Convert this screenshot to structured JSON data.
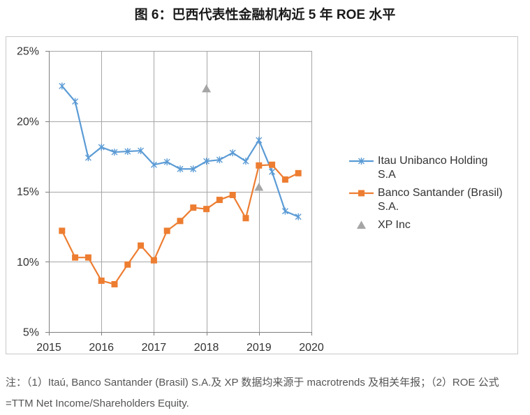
{
  "chart_data": {
    "type": "line",
    "title": "图 6：巴西代表性金融机构近 5 年 ROE 水平",
    "xlabel": "",
    "ylabel": "",
    "xlim": [
      2015,
      2020
    ],
    "ylim": [
      5,
      25
    ],
    "x_tick_values": [
      2015,
      2016,
      2017,
      2018,
      2019,
      2020
    ],
    "x_ticks": [
      "2015",
      "2016",
      "2017",
      "2018",
      "2019",
      "2020"
    ],
    "y_tick_values": [
      5,
      10,
      15,
      20,
      25
    ],
    "y_ticks": [
      "5%",
      "10%",
      "15%",
      "20%",
      "25%"
    ],
    "grid": true,
    "legend_position": "right",
    "series": [
      {
        "name": "Itau Unibanco Holding S.A",
        "color": "#5B9BD5",
        "marker": "asterisk",
        "line": true,
        "x": [
          2015.25,
          2015.5,
          2015.75,
          2016,
          2016.25,
          2016.5,
          2016.75,
          2017,
          2017.25,
          2017.5,
          2017.75,
          2018,
          2018.25,
          2018.5,
          2018.75,
          2019,
          2019.25,
          2019.5,
          2019.75
        ],
        "y": [
          22.5,
          21.4,
          17.4,
          18.15,
          17.8,
          17.85,
          17.9,
          16.9,
          17.1,
          16.6,
          16.6,
          17.15,
          17.25,
          17.75,
          17.15,
          18.65,
          16.4,
          13.6,
          13.2
        ]
      },
      {
        "name": "Banco Santander (Brasil) S.A.",
        "color": "#ED7D31",
        "marker": "square",
        "line": true,
        "x": [
          2015.25,
          2015.5,
          2015.75,
          2016,
          2016.25,
          2016.5,
          2016.75,
          2017,
          2017.25,
          2017.5,
          2017.75,
          2018,
          2018.25,
          2018.5,
          2018.75,
          2019,
          2019.25,
          2019.5,
          2019.75
        ],
        "y": [
          12.2,
          10.3,
          10.3,
          8.65,
          8.4,
          9.8,
          11.15,
          10.1,
          12.2,
          12.9,
          13.85,
          13.75,
          14.4,
          14.75,
          13.1,
          16.85,
          16.9,
          15.85,
          16.3
        ]
      },
      {
        "name": "XP Inc",
        "color": "#A5A5A5",
        "marker": "triangle",
        "line": false,
        "x": [
          2018,
          2019
        ],
        "y": [
          22.3,
          15.3
        ]
      }
    ]
  },
  "footnote": "注：（1）Itaú, Banco Santander (Brasil) S.A.及 XP 数据均来源于 macrotrends 及相关年报；（2）ROE 公式=TTM Net Income/Shareholders Equity."
}
